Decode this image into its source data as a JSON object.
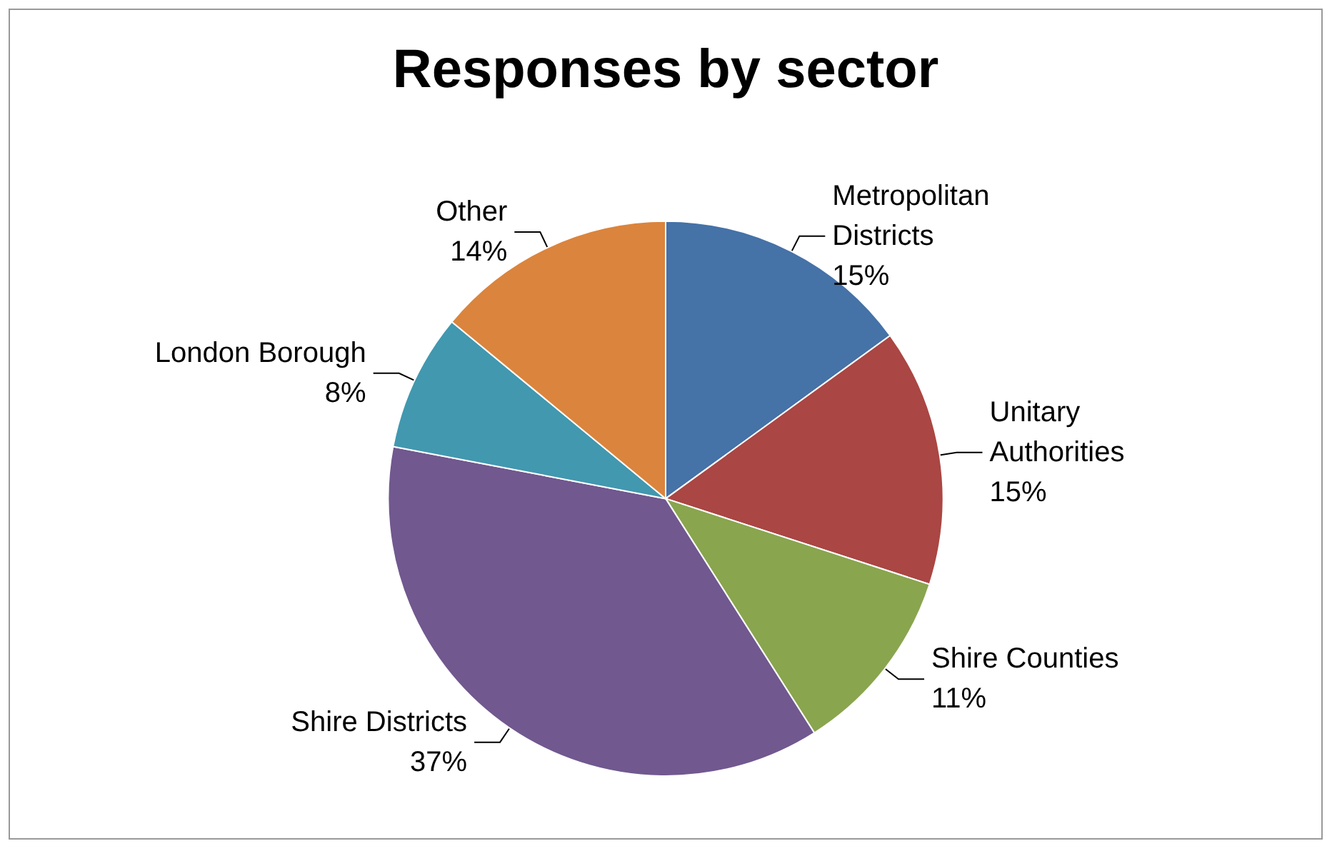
{
  "chart_data": {
    "type": "pie",
    "title": "Responses by sector",
    "categories": [
      "Metropolitan Districts",
      "Unitary Authorities",
      "Shire Counties",
      "Shire Districts",
      "London Borough",
      "Other"
    ],
    "values": [
      15,
      15,
      11,
      37,
      8,
      14
    ],
    "value_labels": [
      "15%",
      "15%",
      "11%",
      "37%",
      "8%",
      "14%"
    ],
    "colors": [
      "#4572a7",
      "#aa4643",
      "#89a54e",
      "#71588f",
      "#4198af",
      "#db843d"
    ]
  }
}
